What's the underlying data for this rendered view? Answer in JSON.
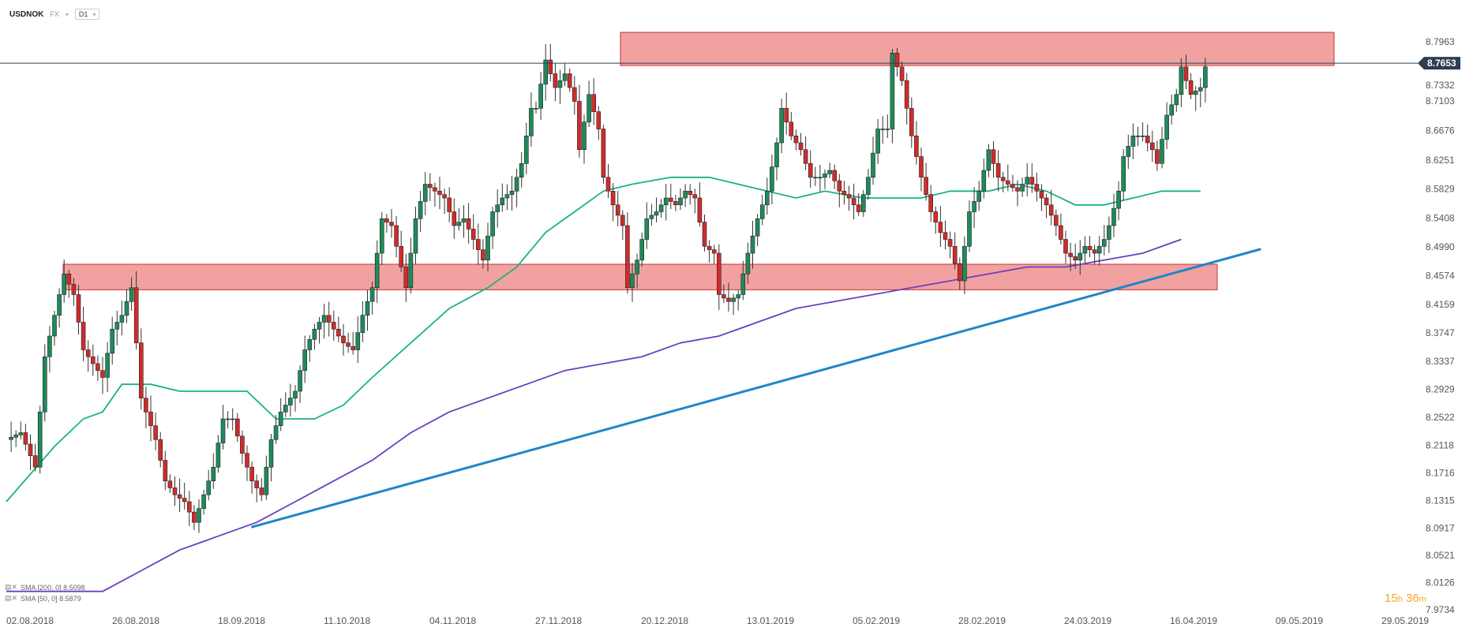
{
  "header": {
    "symbol": "USDNOK",
    "exchange": "FX",
    "timeframe": "D1"
  },
  "indicators": [
    {
      "label": "SMA [200, 0] 8.5098",
      "color": "#6a3fbf"
    },
    {
      "label": "SMA [50, 0] 8.5879",
      "color": "#17b47e"
    }
  ],
  "timer": {
    "hours": "15",
    "h_unit": "h",
    "minutes": "36",
    "m_unit": "m"
  },
  "colors": {
    "bull": "#1f8a5b",
    "bear": "#d22b2b",
    "zone": "#ef8a8a",
    "trend": "#1f86c8",
    "sma50": "#17b47e",
    "sma200": "#6a3fbf"
  },
  "chart_data": {
    "type": "candlestick",
    "ylim": [
      7.9734,
      8.85
    ],
    "y_ticks": [
      "8.7963",
      "8.7332",
      "8.7103",
      "8.6676",
      "8.6251",
      "8.5829",
      "8.5408",
      "8.4990",
      "8.4574",
      "8.4159",
      "8.3747",
      "8.3337",
      "8.2929",
      "8.2522",
      "8.2118",
      "8.1716",
      "8.1315",
      "8.0917",
      "8.0521",
      "8.0126",
      "7.9734"
    ],
    "x_ticks": [
      "02.08.2018",
      "26.08.2018",
      "18.09.2018",
      "11.10.2018",
      "04.11.2018",
      "27.11.2018",
      "20.12.2018",
      "13.01.2019",
      "05.02.2019",
      "28.02.2019",
      "24.03.2019",
      "16.04.2019",
      "09.05.2019",
      "29.05.2019"
    ],
    "last_price": "8.7653",
    "resistance_zone": [
      8.762,
      8.81
    ],
    "support_zone": [
      8.437,
      8.474
    ],
    "trendline": [
      [
        23,
        8.093
      ],
      [
        213,
        8.496
      ]
    ],
    "anchors": [
      [
        0,
        8.22
      ],
      [
        3,
        8.23
      ],
      [
        6,
        8.18
      ],
      [
        8,
        8.34
      ],
      [
        10,
        8.4
      ],
      [
        12,
        8.46
      ],
      [
        14,
        8.43
      ],
      [
        16,
        8.35
      ],
      [
        18,
        8.33
      ],
      [
        20,
        8.31
      ],
      [
        22,
        8.38
      ],
      [
        24,
        8.4
      ],
      [
        26,
        8.44
      ],
      [
        28,
        8.28
      ],
      [
        31,
        8.22
      ],
      [
        33,
        8.16
      ],
      [
        35,
        8.14
      ],
      [
        37,
        8.13
      ],
      [
        39,
        8.1
      ],
      [
        41,
        8.14
      ],
      [
        43,
        8.18
      ],
      [
        45,
        8.25
      ],
      [
        47,
        8.25
      ],
      [
        49,
        8.2
      ],
      [
        51,
        8.16
      ],
      [
        53,
        8.14
      ],
      [
        55,
        8.22
      ],
      [
        57,
        8.26
      ],
      [
        60,
        8.29
      ],
      [
        62,
        8.35
      ],
      [
        64,
        8.38
      ],
      [
        66,
        8.4
      ],
      [
        68,
        8.38
      ],
      [
        70,
        8.36
      ],
      [
        72,
        8.35
      ],
      [
        74,
        8.4
      ],
      [
        76,
        8.44
      ],
      [
        78,
        8.54
      ],
      [
        80,
        8.53
      ],
      [
        81,
        8.5
      ],
      [
        83,
        8.44
      ],
      [
        85,
        8.54
      ],
      [
        87,
        8.59
      ],
      [
        89,
        8.58
      ],
      [
        91,
        8.57
      ],
      [
        93,
        8.53
      ],
      [
        95,
        8.54
      ],
      [
        97,
        8.51
      ],
      [
        99,
        8.48
      ],
      [
        101,
        8.55
      ],
      [
        103,
        8.57
      ],
      [
        105,
        8.58
      ],
      [
        107,
        8.62
      ],
      [
        109,
        8.7
      ],
      [
        110,
        8.7
      ],
      [
        112,
        8.77
      ],
      [
        114,
        8.73
      ],
      [
        116,
        8.75
      ],
      [
        118,
        8.71
      ],
      [
        119,
        8.64
      ],
      [
        121,
        8.72
      ],
      [
        123,
        8.67
      ],
      [
        124,
        8.6
      ],
      [
        126,
        8.56
      ],
      [
        128,
        8.53
      ],
      [
        129,
        8.44
      ],
      [
        131,
        8.48
      ],
      [
        133,
        8.54
      ],
      [
        135,
        8.55
      ],
      [
        137,
        8.57
      ],
      [
        139,
        8.56
      ],
      [
        141,
        8.58
      ],
      [
        143,
        8.57
      ],
      [
        145,
        8.5
      ],
      [
        147,
        8.49
      ],
      [
        148,
        8.43
      ],
      [
        150,
        8.42
      ],
      [
        152,
        8.43
      ],
      [
        154,
        8.49
      ],
      [
        156,
        8.54
      ],
      [
        158,
        8.58
      ],
      [
        160,
        8.65
      ],
      [
        161,
        8.7
      ],
      [
        163,
        8.66
      ],
      [
        165,
        8.64
      ],
      [
        167,
        8.6
      ],
      [
        169,
        8.6
      ],
      [
        171,
        8.61
      ],
      [
        173,
        8.58
      ],
      [
        175,
        8.57
      ],
      [
        177,
        8.55
      ],
      [
        179,
        8.6
      ],
      [
        181,
        8.67
      ],
      [
        183,
        8.67
      ],
      [
        184,
        8.78
      ],
      [
        186,
        8.74
      ],
      [
        188,
        8.66
      ],
      [
        190,
        8.6
      ],
      [
        192,
        8.55
      ],
      [
        194,
        8.52
      ],
      [
        196,
        8.5
      ],
      [
        198,
        8.45
      ],
      [
        200,
        8.55
      ],
      [
        202,
        8.58
      ],
      [
        204,
        8.64
      ],
      [
        206,
        8.6
      ],
      [
        208,
        8.59
      ],
      [
        210,
        8.58
      ],
      [
        212,
        8.6
      ],
      [
        214,
        8.58
      ],
      [
        216,
        8.56
      ],
      [
        218,
        8.53
      ],
      [
        220,
        8.49
      ],
      [
        222,
        8.48
      ],
      [
        224,
        8.5
      ],
      [
        226,
        8.49
      ],
      [
        228,
        8.51
      ],
      [
        229,
        8.53
      ],
      [
        231,
        8.58
      ],
      [
        232,
        8.63
      ],
      [
        234,
        8.66
      ],
      [
        236,
        8.66
      ],
      [
        238,
        8.64
      ],
      [
        239,
        8.62
      ],
      [
        241,
        8.69
      ],
      [
        243,
        8.72
      ],
      [
        244,
        8.76
      ],
      [
        246,
        8.72
      ],
      [
        248,
        8.73
      ],
      [
        249,
        8.76
      ]
    ],
    "sma50_path": [
      [
        0,
        8.13
      ],
      [
        10,
        8.21
      ],
      [
        16,
        8.25
      ],
      [
        20,
        8.26
      ],
      [
        24,
        8.3
      ],
      [
        26,
        8.3
      ],
      [
        30,
        8.3
      ],
      [
        36,
        8.29
      ],
      [
        44,
        8.29
      ],
      [
        50,
        8.29
      ],
      [
        56,
        8.25
      ],
      [
        64,
        8.25
      ],
      [
        70,
        8.27
      ],
      [
        76,
        8.31
      ],
      [
        84,
        8.36
      ],
      [
        92,
        8.41
      ],
      [
        100,
        8.44
      ],
      [
        106,
        8.47
      ],
      [
        112,
        8.52
      ],
      [
        118,
        8.55
      ],
      [
        124,
        8.58
      ],
      [
        130,
        8.59
      ],
      [
        138,
        8.6
      ],
      [
        146,
        8.6
      ],
      [
        152,
        8.59
      ],
      [
        158,
        8.58
      ],
      [
        164,
        8.57
      ],
      [
        170,
        8.58
      ],
      [
        178,
        8.57
      ],
      [
        184,
        8.57
      ],
      [
        190,
        8.57
      ],
      [
        196,
        8.58
      ],
      [
        204,
        8.58
      ],
      [
        210,
        8.59
      ],
      [
        216,
        8.58
      ],
      [
        222,
        8.56
      ],
      [
        228,
        8.56
      ],
      [
        234,
        8.57
      ],
      [
        240,
        8.58
      ],
      [
        248,
        8.58
      ]
    ],
    "sma200_path": [
      [
        0,
        8.0
      ],
      [
        20,
        8.0
      ],
      [
        28,
        8.03
      ],
      [
        36,
        8.06
      ],
      [
        44,
        8.08
      ],
      [
        52,
        8.1
      ],
      [
        60,
        8.13
      ],
      [
        68,
        8.16
      ],
      [
        76,
        8.19
      ],
      [
        84,
        8.23
      ],
      [
        92,
        8.26
      ],
      [
        100,
        8.28
      ],
      [
        108,
        8.3
      ],
      [
        116,
        8.32
      ],
      [
        124,
        8.33
      ],
      [
        132,
        8.34
      ],
      [
        140,
        8.36
      ],
      [
        148,
        8.37
      ],
      [
        156,
        8.39
      ],
      [
        164,
        8.41
      ],
      [
        172,
        8.42
      ],
      [
        180,
        8.43
      ],
      [
        188,
        8.44
      ],
      [
        196,
        8.45
      ],
      [
        204,
        8.46
      ],
      [
        212,
        8.47
      ],
      [
        220,
        8.47
      ],
      [
        228,
        8.48
      ],
      [
        236,
        8.49
      ],
      [
        244,
        8.51
      ]
    ]
  }
}
